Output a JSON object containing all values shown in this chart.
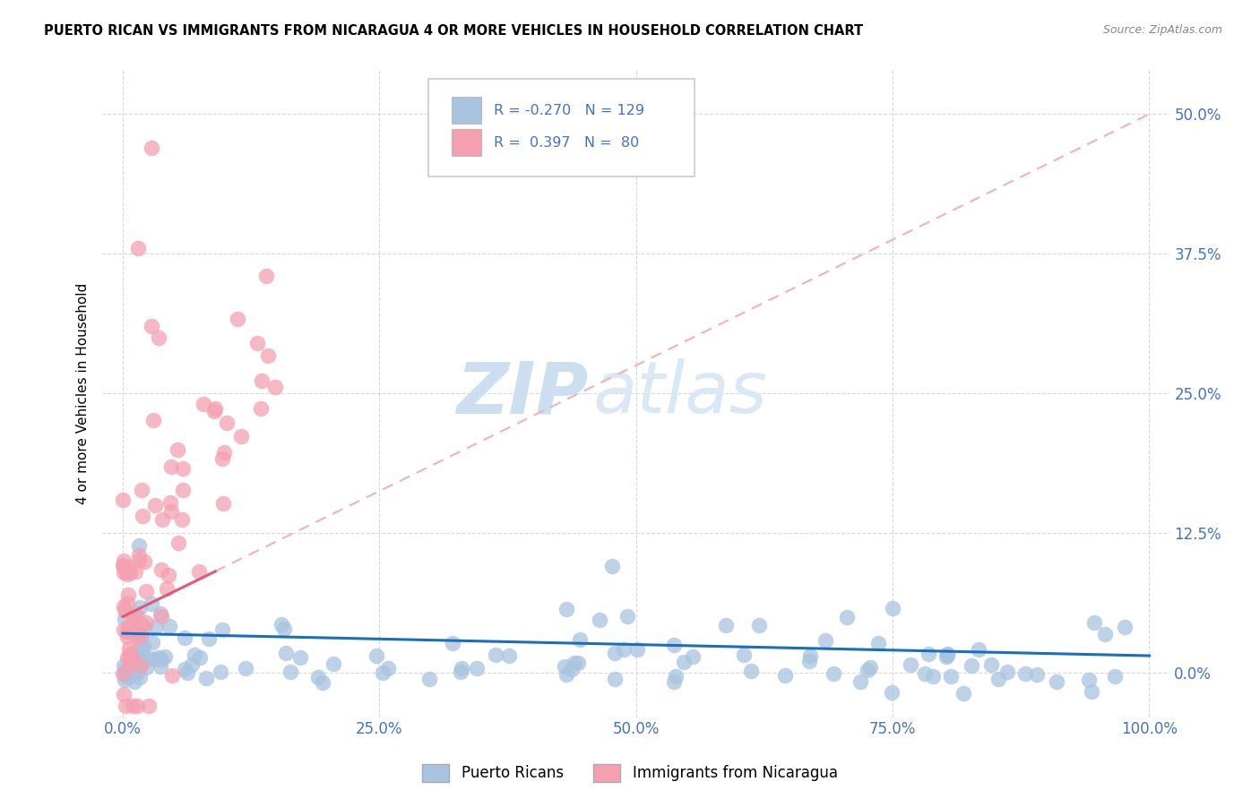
{
  "title": "PUERTO RICAN VS IMMIGRANTS FROM NICARAGUA 4 OR MORE VEHICLES IN HOUSEHOLD CORRELATION CHART",
  "source": "Source: ZipAtlas.com",
  "ylabel": "4 or more Vehicles in Household",
  "xlim": [
    -2,
    102
  ],
  "ylim": [
    -4,
    54
  ],
  "yticks": [
    0.0,
    12.5,
    25.0,
    37.5,
    50.0
  ],
  "xticks": [
    0.0,
    25.0,
    50.0,
    75.0,
    100.0
  ],
  "xtick_labels": [
    "0.0%",
    "25.0%",
    "50.0%",
    "75.0%",
    "100.0%"
  ],
  "ytick_labels": [
    "0.0%",
    "12.5%",
    "25.0%",
    "37.5%",
    "50.0%"
  ],
  "R_blue": -0.27,
  "N_blue": 129,
  "R_pink": 0.397,
  "N_pink": 80,
  "blue_color": "#a8c4e0",
  "pink_color": "#f4a0b0",
  "blue_line_color": "#1a6fbd",
  "pink_line_color": "#e05878",
  "pink_dash_color": "#f0b0bc",
  "watermark_zip_color": "#ccdff0",
  "watermark_atlas_color": "#d8e8f4",
  "legend_labels": [
    "Puerto Ricans",
    "Immigrants from Nicaragua"
  ],
  "grid_color": "#d8d8d8",
  "background_color": "#ffffff",
  "tick_color": "#4472c4",
  "legend_text_color": "#4472c4"
}
